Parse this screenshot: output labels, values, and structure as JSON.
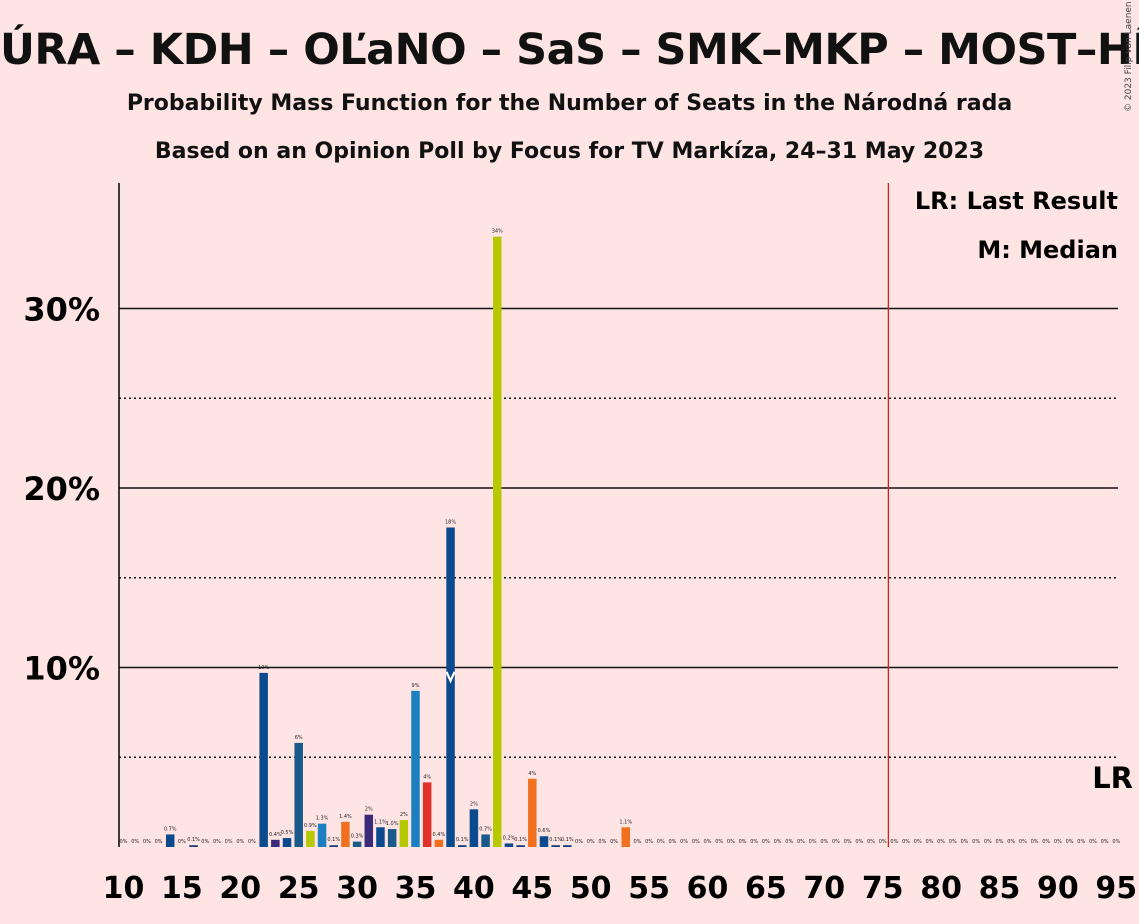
{
  "title": "ÚRA – KDH – OĽaNO – SaS – SMK–MKP – MOST–HÍD – ZL",
  "subtitle1": "Probability Mass Function for the Number of Seats in the Národná rada",
  "subtitle2": "Based on an Opinion Poll by Focus for TV Markíza, 24–31 May 2023",
  "copyright": "© 2023 Filip van Laenen",
  "legend": {
    "last_result": "LR: Last Result",
    "median": "M: Median",
    "lr_marker": "LR"
  },
  "chart_data": {
    "type": "bar",
    "xlim": [
      10,
      95
    ],
    "ylim": [
      0,
      37
    ],
    "grid": true,
    "x_ticks": [
      10,
      15,
      20,
      25,
      30,
      35,
      40,
      45,
      50,
      55,
      60,
      65,
      70,
      75,
      80,
      85,
      90,
      95
    ],
    "y_ticks": [
      {
        "value": 10,
        "label": "10%"
      },
      {
        "value": 20,
        "label": "20%"
      },
      {
        "value": 30,
        "label": "30%"
      }
    ],
    "median_seat": 38,
    "last_result_seat": 76,
    "colors": {
      "navy": "#1a3a7a",
      "blue": "#0b4a8f",
      "teal": "#1a5a8a",
      "lightblue": "#1c7fc0",
      "purple": "#3a2a7a",
      "yellowgreen": "#b5c800",
      "orange": "#f07020",
      "red": "#e0302a",
      "lr_line": "#d02020"
    },
    "bars": [
      {
        "seat": 10,
        "value": 0,
        "label": "0%",
        "color": "navy"
      },
      {
        "seat": 11,
        "value": 0,
        "label": "0%",
        "color": "navy"
      },
      {
        "seat": 12,
        "value": 0,
        "label": "0%",
        "color": "navy"
      },
      {
        "seat": 13,
        "value": 0,
        "label": "0%",
        "color": "navy"
      },
      {
        "seat": 14,
        "value": 0.7,
        "label": "0.7%",
        "color": "blue"
      },
      {
        "seat": 15,
        "value": 0,
        "label": "0%",
        "color": "navy"
      },
      {
        "seat": 16,
        "value": 0.1,
        "label": "0.1%",
        "color": "navy"
      },
      {
        "seat": 17,
        "value": 0,
        "label": "0%",
        "color": "navy"
      },
      {
        "seat": 18,
        "value": 0,
        "label": "0%",
        "color": "navy"
      },
      {
        "seat": 19,
        "value": 0,
        "label": "0%",
        "color": "navy"
      },
      {
        "seat": 20,
        "value": 0,
        "label": "0%",
        "color": "navy"
      },
      {
        "seat": 21,
        "value": 0,
        "label": "0%",
        "color": "navy"
      },
      {
        "seat": 22,
        "value": 9.7,
        "label": "10%",
        "color": "blue"
      },
      {
        "seat": 23,
        "value": 0.4,
        "label": "0.4%",
        "color": "purple"
      },
      {
        "seat": 24,
        "value": 0.5,
        "label": "0.5%",
        "color": "blue"
      },
      {
        "seat": 25,
        "value": 5.8,
        "label": "6%",
        "color": "teal"
      },
      {
        "seat": 26,
        "value": 0.9,
        "label": "0.9%",
        "color": "yellowgreen"
      },
      {
        "seat": 27,
        "value": 1.3,
        "label": "1.3%",
        "color": "lightblue"
      },
      {
        "seat": 28,
        "value": 0.1,
        "label": "0.1%",
        "color": "navy"
      },
      {
        "seat": 29,
        "value": 1.4,
        "label": "1.4%",
        "color": "orange"
      },
      {
        "seat": 30,
        "value": 0.3,
        "label": "0.3%",
        "color": "teal"
      },
      {
        "seat": 31,
        "value": 1.8,
        "label": "2%",
        "color": "purple"
      },
      {
        "seat": 32,
        "value": 1.1,
        "label": "1.1%",
        "color": "blue"
      },
      {
        "seat": 33,
        "value": 1.0,
        "label": "1.0%",
        "color": "teal"
      },
      {
        "seat": 34,
        "value": 1.5,
        "label": "2%",
        "color": "yellowgreen"
      },
      {
        "seat": 35,
        "value": 8.7,
        "label": "9%",
        "color": "lightblue"
      },
      {
        "seat": 36,
        "value": 3.6,
        "label": "4%",
        "color": "red"
      },
      {
        "seat": 37,
        "value": 0.4,
        "label": "0.4%",
        "color": "orange"
      },
      {
        "seat": 38,
        "value": 17.8,
        "label": "18%",
        "color": "blue"
      },
      {
        "seat": 39,
        "value": 0.1,
        "label": "0.1%",
        "color": "navy"
      },
      {
        "seat": 40,
        "value": 2.1,
        "label": "2%",
        "color": "blue"
      },
      {
        "seat": 41,
        "value": 0.7,
        "label": "0.7%",
        "color": "teal"
      },
      {
        "seat": 42,
        "value": 34.0,
        "label": "34%",
        "color": "yellowgreen"
      },
      {
        "seat": 43,
        "value": 0.2,
        "label": "0.2%",
        "color": "blue"
      },
      {
        "seat": 44,
        "value": 0.1,
        "label": "0.1%",
        "color": "navy"
      },
      {
        "seat": 45,
        "value": 3.8,
        "label": "4%",
        "color": "orange"
      },
      {
        "seat": 46,
        "value": 0.6,
        "label": "0.6%",
        "color": "blue"
      },
      {
        "seat": 47,
        "value": 0.1,
        "label": "0.1%",
        "color": "navy"
      },
      {
        "seat": 48,
        "value": 0.1,
        "label": "0.1%",
        "color": "navy"
      },
      {
        "seat": 49,
        "value": 0,
        "label": "0%",
        "color": "navy"
      },
      {
        "seat": 50,
        "value": 0,
        "label": "0%",
        "color": "navy"
      },
      {
        "seat": 51,
        "value": 0,
        "label": "0%",
        "color": "navy"
      },
      {
        "seat": 52,
        "value": 0,
        "label": "0%",
        "color": "navy"
      },
      {
        "seat": 53,
        "value": 1.1,
        "label": "1.1%",
        "color": "orange"
      },
      {
        "seat": 54,
        "value": 0,
        "label": "0%",
        "color": "navy"
      },
      {
        "seat": 55,
        "value": 0,
        "label": "0%",
        "color": "navy"
      },
      {
        "seat": 56,
        "value": 0,
        "label": "0%",
        "color": "navy"
      },
      {
        "seat": 57,
        "value": 0,
        "label": "0%",
        "color": "navy"
      },
      {
        "seat": 58,
        "value": 0,
        "label": "0%",
        "color": "navy"
      },
      {
        "seat": 59,
        "value": 0,
        "label": "0%",
        "color": "navy"
      },
      {
        "seat": 60,
        "value": 0,
        "label": "0%",
        "color": "navy"
      },
      {
        "seat": 61,
        "value": 0,
        "label": "0%",
        "color": "navy"
      },
      {
        "seat": 62,
        "value": 0,
        "label": "0%",
        "color": "navy"
      },
      {
        "seat": 63,
        "value": 0,
        "label": "0%",
        "color": "navy"
      },
      {
        "seat": 64,
        "value": 0,
        "label": "0%",
        "color": "navy"
      },
      {
        "seat": 65,
        "value": 0,
        "label": "0%",
        "color": "navy"
      },
      {
        "seat": 66,
        "value": 0,
        "label": "0%",
        "color": "navy"
      },
      {
        "seat": 67,
        "value": 0,
        "label": "0%",
        "color": "navy"
      },
      {
        "seat": 68,
        "value": 0,
        "label": "0%",
        "color": "navy"
      },
      {
        "seat": 69,
        "value": 0,
        "label": "0%",
        "color": "navy"
      },
      {
        "seat": 70,
        "value": 0,
        "label": "0%",
        "color": "navy"
      },
      {
        "seat": 71,
        "value": 0,
        "label": "0%",
        "color": "navy"
      },
      {
        "seat": 72,
        "value": 0,
        "label": "0%",
        "color": "navy"
      },
      {
        "seat": 73,
        "value": 0,
        "label": "0%",
        "color": "navy"
      },
      {
        "seat": 74,
        "value": 0,
        "label": "0%",
        "color": "navy"
      },
      {
        "seat": 75,
        "value": 0,
        "label": "0%",
        "color": "navy"
      },
      {
        "seat": 76,
        "value": 0,
        "label": "0%",
        "color": "navy"
      },
      {
        "seat": 77,
        "value": 0,
        "label": "0%",
        "color": "navy"
      },
      {
        "seat": 78,
        "value": 0,
        "label": "0%",
        "color": "navy"
      },
      {
        "seat": 79,
        "value": 0,
        "label": "0%",
        "color": "navy"
      },
      {
        "seat": 80,
        "value": 0,
        "label": "0%",
        "color": "navy"
      },
      {
        "seat": 81,
        "value": 0,
        "label": "0%",
        "color": "navy"
      },
      {
        "seat": 82,
        "value": 0,
        "label": "0%",
        "color": "navy"
      },
      {
        "seat": 83,
        "value": 0,
        "label": "0%",
        "color": "navy"
      },
      {
        "seat": 84,
        "value": 0,
        "label": "0%",
        "color": "navy"
      },
      {
        "seat": 85,
        "value": 0,
        "label": "0%",
        "color": "navy"
      },
      {
        "seat": 86,
        "value": 0,
        "label": "0%",
        "color": "navy"
      },
      {
        "seat": 87,
        "value": 0,
        "label": "0%",
        "color": "navy"
      },
      {
        "seat": 88,
        "value": 0,
        "label": "0%",
        "color": "navy"
      },
      {
        "seat": 89,
        "value": 0,
        "label": "0%",
        "color": "navy"
      },
      {
        "seat": 90,
        "value": 0,
        "label": "0%",
        "color": "navy"
      },
      {
        "seat": 91,
        "value": 0,
        "label": "0%",
        "color": "navy"
      },
      {
        "seat": 92,
        "value": 0,
        "label": "0%",
        "color": "navy"
      },
      {
        "seat": 93,
        "value": 0,
        "label": "0%",
        "color": "navy"
      },
      {
        "seat": 94,
        "value": 0,
        "label": "0%",
        "color": "navy"
      },
      {
        "seat": 95,
        "value": 0,
        "label": "0%",
        "color": "navy"
      }
    ]
  }
}
